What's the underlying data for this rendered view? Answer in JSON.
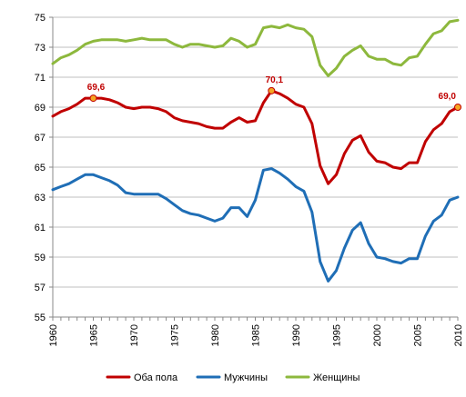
{
  "chart_data": {
    "type": "line",
    "title": "",
    "xlabel": "",
    "ylabel": "",
    "ylim": [
      55,
      75
    ],
    "xlim": [
      1960,
      2010
    ],
    "y_ticks": [
      55,
      57,
      59,
      61,
      63,
      65,
      67,
      69,
      71,
      73,
      75
    ],
    "x_ticks": [
      1960,
      1965,
      1970,
      1975,
      1980,
      1985,
      1990,
      1995,
      2000,
      2005,
      2010
    ],
    "grid": "horizontal",
    "legend_position": "bottom",
    "x": [
      1960,
      1961,
      1962,
      1963,
      1964,
      1965,
      1966,
      1967,
      1968,
      1969,
      1970,
      1971,
      1972,
      1973,
      1974,
      1975,
      1976,
      1977,
      1978,
      1979,
      1980,
      1981,
      1982,
      1983,
      1984,
      1985,
      1986,
      1987,
      1988,
      1989,
      1990,
      1991,
      1992,
      1993,
      1994,
      1995,
      1996,
      1997,
      1998,
      1999,
      2000,
      2001,
      2002,
      2003,
      2004,
      2005,
      2006,
      2007,
      2008,
      2009,
      2010
    ],
    "series": [
      {
        "name": "Оба пола",
        "color": "#c00000",
        "values": [
          68.4,
          68.7,
          68.9,
          69.2,
          69.6,
          69.6,
          69.6,
          69.5,
          69.3,
          69.0,
          68.9,
          69.0,
          69.0,
          68.9,
          68.7,
          68.3,
          68.1,
          68.0,
          67.9,
          67.7,
          67.6,
          67.6,
          68.0,
          68.3,
          68.0,
          68.1,
          69.3,
          70.1,
          69.9,
          69.6,
          69.2,
          69.0,
          67.9,
          65.1,
          63.9,
          64.5,
          65.9,
          66.8,
          67.1,
          66.0,
          65.4,
          65.3,
          65.0,
          64.9,
          65.3,
          65.3,
          66.7,
          67.5,
          67.9,
          68.7,
          69.0
        ]
      },
      {
        "name": "Мужчины",
        "color": "#1f6eb6",
        "values": [
          63.5,
          63.7,
          63.9,
          64.2,
          64.5,
          64.5,
          64.3,
          64.1,
          63.8,
          63.3,
          63.2,
          63.2,
          63.2,
          63.2,
          62.9,
          62.5,
          62.1,
          61.9,
          61.8,
          61.6,
          61.4,
          61.6,
          62.3,
          62.3,
          61.7,
          62.8,
          64.8,
          64.9,
          64.6,
          64.2,
          63.7,
          63.4,
          62.0,
          58.7,
          57.4,
          58.1,
          59.6,
          60.8,
          61.3,
          59.9,
          59.0,
          58.9,
          58.7,
          58.6,
          58.9,
          58.9,
          60.4,
          61.4,
          61.8,
          62.8,
          63.0
        ]
      },
      {
        "name": "Женщины",
        "color": "#8db83d",
        "values": [
          71.9,
          72.3,
          72.5,
          72.8,
          73.2,
          73.4,
          73.5,
          73.5,
          73.5,
          73.4,
          73.5,
          73.6,
          73.5,
          73.5,
          73.5,
          73.2,
          73.0,
          73.2,
          73.2,
          73.1,
          73.0,
          73.1,
          73.6,
          73.4,
          73.0,
          73.2,
          74.3,
          74.4,
          74.3,
          74.5,
          74.3,
          74.2,
          73.7,
          71.8,
          71.1,
          71.6,
          72.4,
          72.8,
          73.1,
          72.4,
          72.2,
          72.2,
          71.9,
          71.8,
          72.3,
          72.4,
          73.2,
          73.9,
          74.1,
          74.7,
          74.8
        ]
      }
    ],
    "annotations": [
      {
        "x": 1965,
        "y": 69.6,
        "label": "69,6",
        "series": 0
      },
      {
        "x": 1987,
        "y": 70.1,
        "label": "70,1",
        "series": 0
      },
      {
        "x": 2010,
        "y": 69.0,
        "label": "69,0",
        "series": 0
      }
    ],
    "marker_color": "#f5a623"
  }
}
